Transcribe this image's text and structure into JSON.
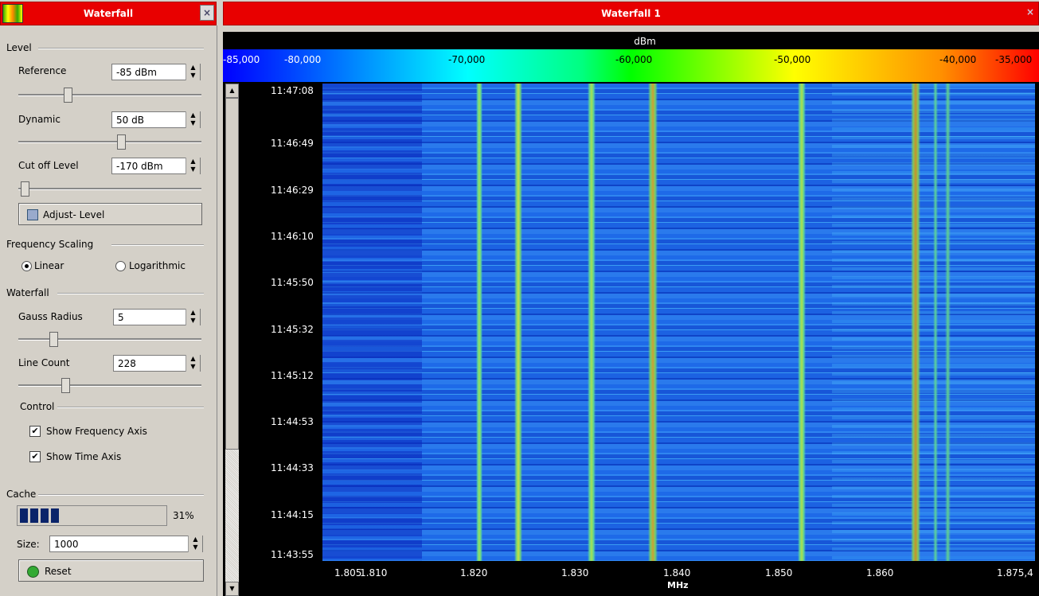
{
  "left_panel": {
    "title": "Waterfall",
    "level": {
      "label": "Level",
      "reference": {
        "label": "Reference",
        "value": "-85 dBm"
      },
      "dynamic": {
        "label": "Dynamic",
        "value": "50 dB"
      },
      "cutoff": {
        "label": "Cut off Level",
        "value": "-170 dBm"
      },
      "adjust_button": "Adjust- Level"
    },
    "frequency_scaling": {
      "label": "Frequency Scaling",
      "options": [
        "Linear",
        "Logarithmic"
      ]
    },
    "waterfall": {
      "label": "Waterfall",
      "gauss_radius": {
        "label": "Gauss Radius",
        "value": "5"
      },
      "line_count": {
        "label": "Line Count",
        "value": "228"
      }
    },
    "control": {
      "label": "Control",
      "checkboxes": [
        "Show Frequency Axis",
        "Show Time Axis"
      ]
    },
    "cache": {
      "label": "Cache",
      "percent": "31%",
      "size_label": "Size:",
      "size_value": "1000",
      "reset_button": "Reset"
    }
  },
  "main_panel": {
    "title": "Waterfall 1",
    "colorbar": {
      "unit": "dBm",
      "labels": [
        "-85,000",
        "-80,000",
        "-70,000",
        "-60,000",
        "-50,000",
        "-40,000",
        "-35,000"
      ]
    },
    "time_labels": [
      "11:47:08",
      "11:46:49",
      "11:46:29",
      "11:46:10",
      "11:45:50",
      "11:45:32",
      "11:45:12",
      "11:44:53",
      "11:44:33",
      "11:44:15",
      "11:43:55"
    ],
    "frequency_labels": [
      "1.805",
      "1.810",
      "1.820",
      "1.830",
      "1.840",
      "1.850",
      "1.860",
      "1.875,4"
    ],
    "frequency_unit": "MHz"
  }
}
